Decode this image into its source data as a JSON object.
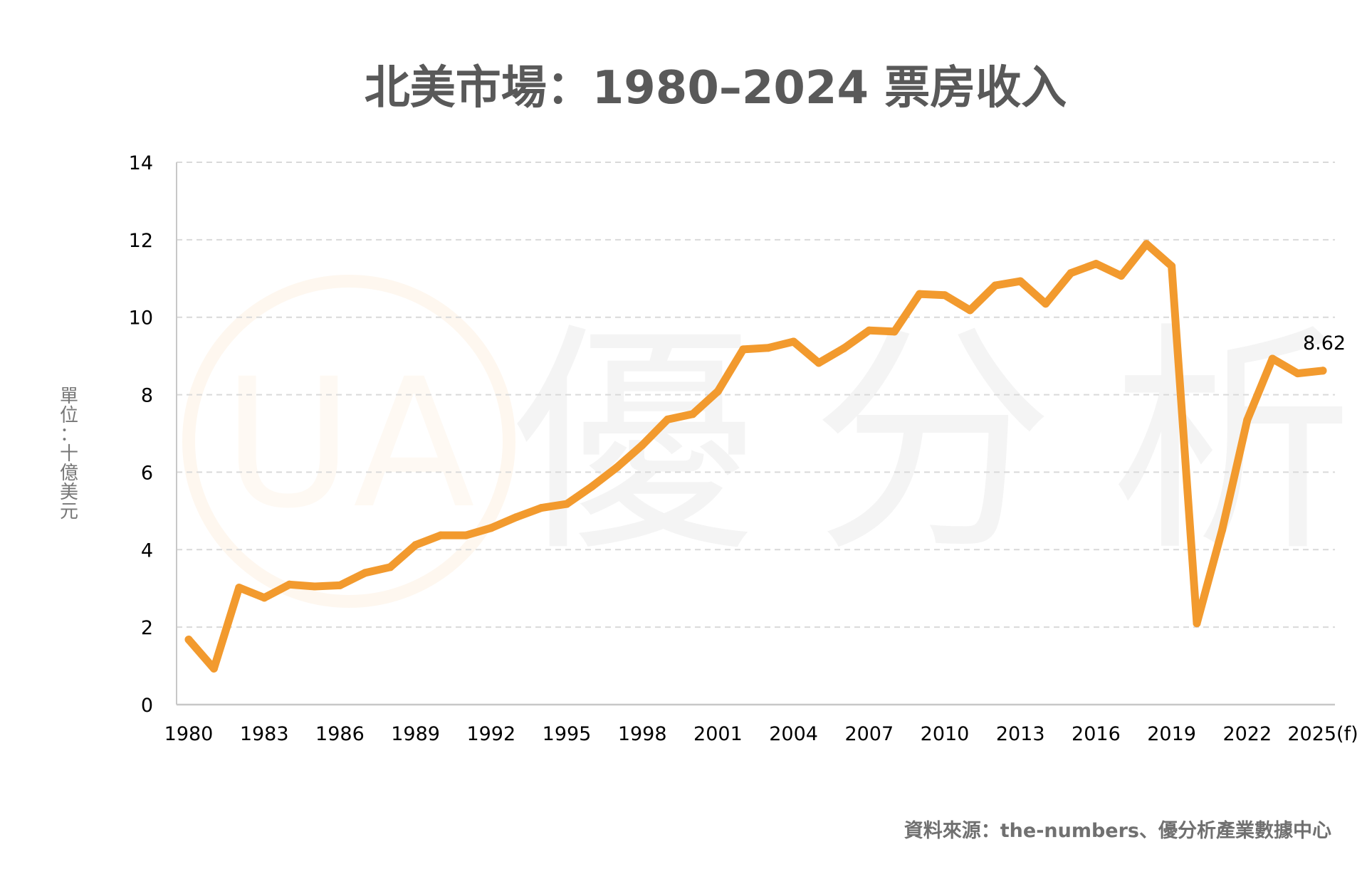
{
  "chart_data": {
    "type": "line",
    "title": "北美市場：1980–2024 票房收入",
    "ylabel": "單位：十億美元",
    "xlabel": "",
    "ylim": [
      0,
      14
    ],
    "yticks": [
      0,
      2,
      4,
      6,
      8,
      10,
      12,
      14
    ],
    "grid": true,
    "x": [
      1980,
      1981,
      1982,
      1983,
      1984,
      1985,
      1986,
      1987,
      1988,
      1989,
      1990,
      1991,
      1992,
      1993,
      1994,
      1995,
      1996,
      1997,
      1998,
      1999,
      2000,
      2001,
      2002,
      2003,
      2004,
      2005,
      2006,
      2007,
      2008,
      2009,
      2010,
      2011,
      2012,
      2013,
      2014,
      2015,
      2016,
      2017,
      2018,
      2019,
      2020,
      2021,
      2022,
      2023,
      2024,
      2025
    ],
    "xtick_labels": [
      "1980",
      "1983",
      "1986",
      "1989",
      "1992",
      "1995",
      "1998",
      "2001",
      "2004",
      "2007",
      "2010",
      "2013",
      "2016",
      "2019",
      "2022",
      "2025(f)"
    ],
    "xtick_years": [
      1980,
      1983,
      1986,
      1989,
      1992,
      1995,
      1998,
      2001,
      2004,
      2007,
      2010,
      2013,
      2016,
      2019,
      2022,
      2025
    ],
    "series": [
      {
        "name": "票房收入",
        "color": "#F29A2E",
        "values": [
          1.68,
          0.93,
          3.02,
          2.76,
          3.1,
          3.05,
          3.08,
          3.4,
          3.55,
          4.12,
          4.37,
          4.37,
          4.56,
          4.84,
          5.08,
          5.18,
          5.63,
          6.13,
          6.7,
          7.36,
          7.5,
          8.09,
          9.17,
          9.21,
          9.37,
          8.82,
          9.2,
          9.66,
          9.63,
          10.6,
          10.57,
          10.18,
          10.82,
          10.93,
          10.35,
          11.14,
          11.38,
          11.07,
          11.89,
          11.32,
          2.1,
          4.5,
          7.35,
          8.93,
          8.55,
          8.62
        ]
      }
    ],
    "data_labels": [
      {
        "x": 2025,
        "text": "8.62"
      }
    ],
    "source": "資料來源：the-numbers、優分析產業數據中心",
    "watermark": {
      "logo_text": "UA",
      "text": "優分析"
    }
  }
}
